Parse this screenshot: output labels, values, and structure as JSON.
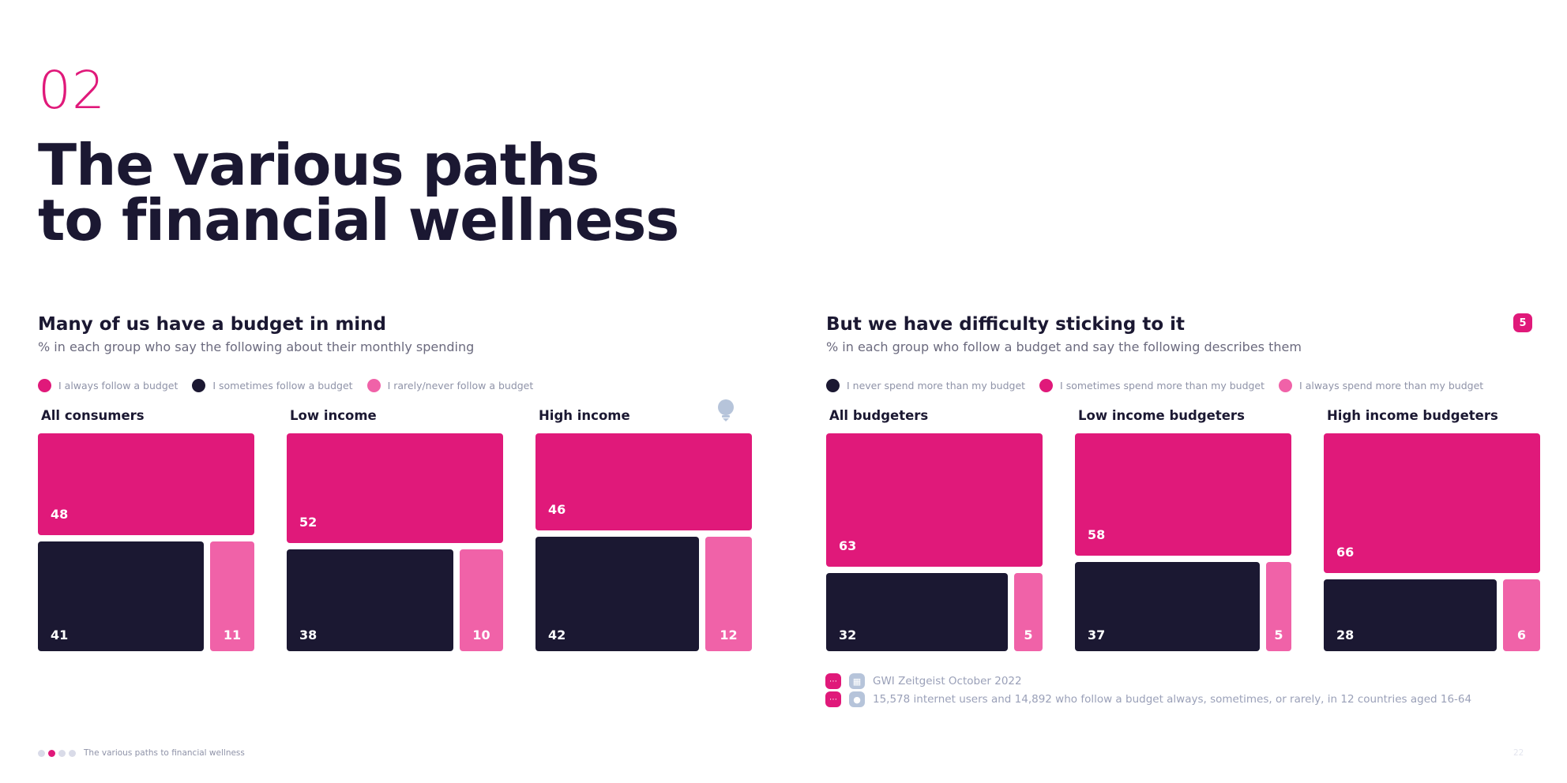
{
  "section": {
    "number": "02"
  },
  "hero": {
    "line1": "The various paths",
    "line2": "to financial wellness"
  },
  "left_panel": {
    "title": "Many of us have a budget in mind",
    "subtitle": "% in each group who say the following about their monthly spending",
    "legend": [
      {
        "label": "I always follow a budget",
        "color": "#e0197a"
      },
      {
        "label": "I sometimes follow a budget",
        "color": "#1b1832"
      },
      {
        "label": "I rarely/never follow a budget",
        "color": "#f062a8"
      }
    ]
  },
  "right_panel": {
    "title": "But we have difficulty sticking to it",
    "subtitle": "% in each group who follow a budget and say the following describes them",
    "badge": "5",
    "legend": [
      {
        "label": "I never spend more than my budget",
        "color": "#1b1832"
      },
      {
        "label": "I sometimes spend more than my budget",
        "color": "#e0197a"
      },
      {
        "label": "I always spend more than my budget",
        "color": "#f062a8"
      }
    ]
  },
  "chart_data": [
    {
      "type": "treemap",
      "title": "All consumers",
      "top": {
        "label": "I always follow a budget",
        "value": 48,
        "color": "#e0197a"
      },
      "bottom_left": {
        "label": "I sometimes follow a budget",
        "value": 41,
        "color": "#1b1832"
      },
      "bottom_right": {
        "label": "I rarely/never follow a budget",
        "value": 11,
        "color": "#f062a8"
      }
    },
    {
      "type": "treemap",
      "title": "Low income",
      "top": {
        "label": "I always follow a budget",
        "value": 52,
        "color": "#e0197a"
      },
      "bottom_left": {
        "label": "I sometimes follow a budget",
        "value": 38,
        "color": "#1b1832"
      },
      "bottom_right": {
        "label": "I rarely/never follow a budget",
        "value": 10,
        "color": "#f062a8"
      }
    },
    {
      "type": "treemap",
      "title": "High income",
      "top": {
        "label": "I always follow a budget",
        "value": 46,
        "color": "#e0197a"
      },
      "bottom_left": {
        "label": "I sometimes follow a budget",
        "value": 42,
        "color": "#1b1832"
      },
      "bottom_right": {
        "label": "I rarely/never follow a budget",
        "value": 12,
        "color": "#f062a8"
      }
    },
    {
      "type": "treemap",
      "title": "All budgeters",
      "top": {
        "label": "I sometimes spend more than my budget",
        "value": 63,
        "color": "#e0197a"
      },
      "bottom_left": {
        "label": "I never spend more than my budget",
        "value": 32,
        "color": "#1b1832"
      },
      "bottom_right": {
        "label": "I always spend more than my budget",
        "value": 5,
        "color": "#f062a8"
      }
    },
    {
      "type": "treemap",
      "title": "Low income budgeters",
      "top": {
        "label": "I sometimes spend more than my budget",
        "value": 58,
        "color": "#e0197a"
      },
      "bottom_left": {
        "label": "I never spend more than my budget",
        "value": 37,
        "color": "#1b1832"
      },
      "bottom_right": {
        "label": "I always spend more than my budget",
        "value": 5,
        "color": "#f062a8"
      }
    },
    {
      "type": "treemap",
      "title": "High income budgeters",
      "top": {
        "label": "I sometimes spend more than my budget",
        "value": 66,
        "color": "#e0197a"
      },
      "bottom_left": {
        "label": "I never spend more than my budget",
        "value": 28,
        "color": "#1b1832"
      },
      "bottom_right": {
        "label": "I always spend more than my budget",
        "value": 6,
        "color": "#f062a8"
      }
    }
  ],
  "notes": {
    "source": "GWI Zeitgeist October 2022",
    "base": "15,578 internet users and 14,892 who follow a budget always, sometimes, or rarely, in 12 countries aged 16-64"
  },
  "footer": {
    "title": "The various paths to financial wellness",
    "page": "22"
  }
}
